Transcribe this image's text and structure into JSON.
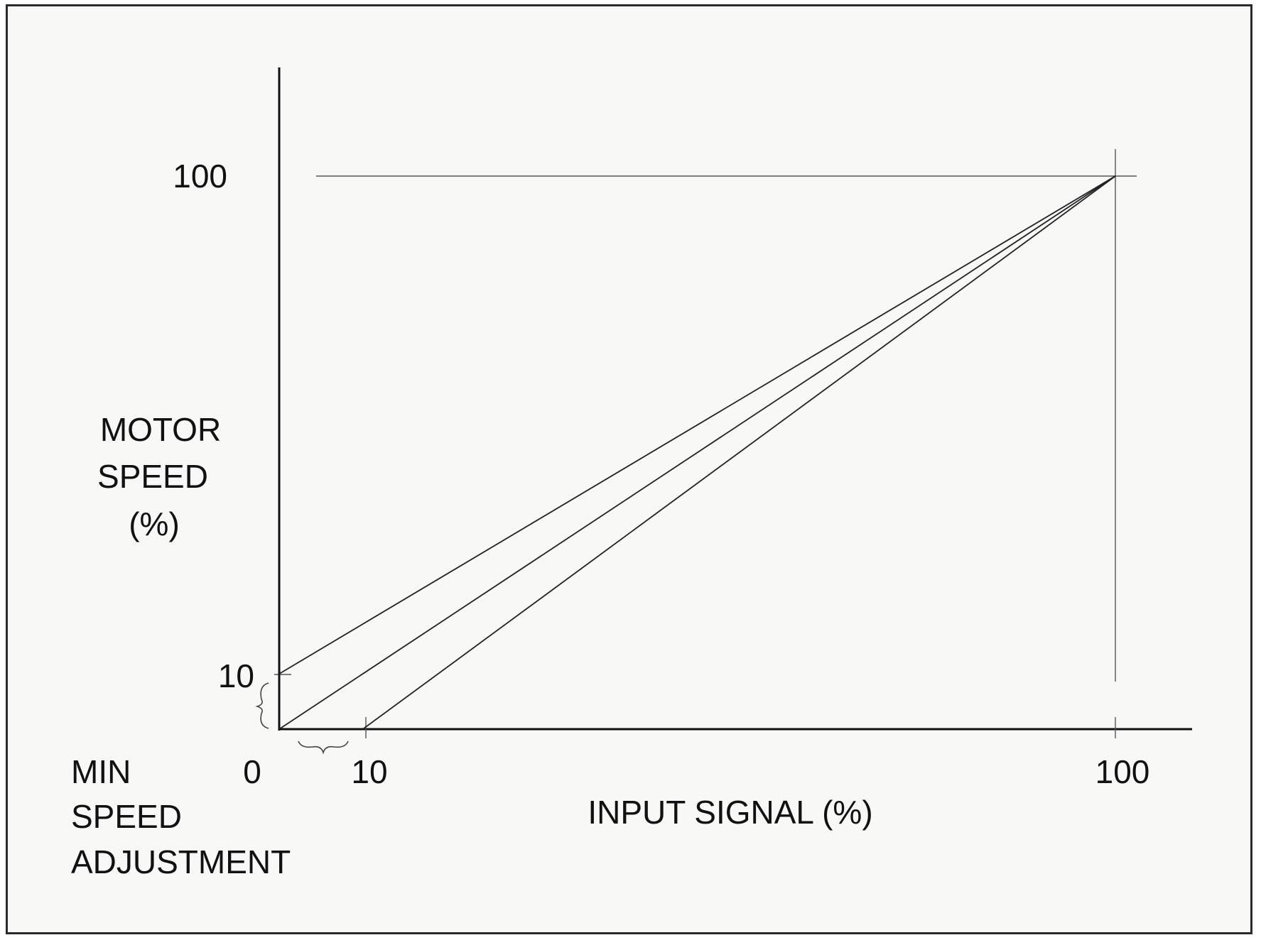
{
  "chart_data": {
    "type": "line",
    "title": "",
    "xlabel": "INPUT SIGNAL (%)",
    "ylabel": [
      "MOTOR",
      "SPEED",
      "(%)"
    ],
    "xlim": [
      0,
      100
    ],
    "ylim": [
      0,
      100
    ],
    "x_ticks": [
      "0",
      "10",
      "100"
    ],
    "y_ticks": [
      "10",
      "100"
    ],
    "grid": false,
    "series": [
      {
        "points": [
          [
            0,
            10
          ],
          [
            100,
            100
          ]
        ]
      },
      {
        "points": [
          [
            0,
            0
          ],
          [
            100,
            100
          ]
        ]
      },
      {
        "points": [
          [
            10,
            0
          ],
          [
            100,
            100
          ]
        ]
      }
    ],
    "annotations": {
      "min_speed_adjustment": [
        "MIN",
        "SPEED",
        "ADJUSTMENT"
      ]
    }
  },
  "colors": {
    "line": "#222222",
    "background": "#f8f8f7"
  }
}
